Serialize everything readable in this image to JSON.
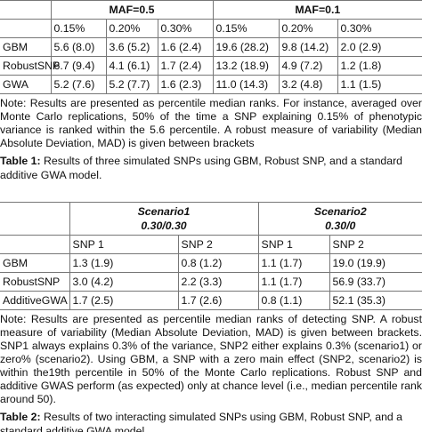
{
  "table1": {
    "group_headers": [
      "MAF=0.5",
      "MAF=0.1"
    ],
    "sub_headers": [
      "0.15%",
      "0.20%",
      "0.30%",
      "0.15%",
      "0.20%",
      "0.30%"
    ],
    "rows": [
      [
        "GBM",
        "5.6 (8.0)",
        "3.6 (5.2)",
        "1.6 (2.4)",
        "19.6 (28.2)",
        "9.8 (14.2)",
        "2.0 (2.9)"
      ],
      [
        "RobustSNP",
        "6.7 (9.4)",
        "4.1 (6.1)",
        "1.7 (2.4)",
        "13.2 (18.9)",
        "4.9 (7.2)",
        "1.2 (1.8)"
      ],
      [
        "GWA",
        "5.2 (7.6)",
        "5.2 (7.7)",
        "1.6 (2.3)",
        "11.0 (14.3)",
        "3.2 (4.8)",
        "1.1 (1.5)"
      ]
    ]
  },
  "note1": "Note: Results are presented as percentile median ranks. For instance, averaged over Monte Carlo replications, 50% of the time a SNP explaining 0.15% of phenotypic variance is ranked within the 5.6 percentile. A robust measure of variability (Median Absolute Deviation, MAD) is given between brackets",
  "caption1": {
    "label": "Table 1:",
    "text": "Results of three simulated SNPs using GBM, Robust SNP, and a standard additive GWA model."
  },
  "table2": {
    "group_headers": [
      {
        "name": "Scenario1",
        "sub": "0.30/0.30"
      },
      {
        "name": "Scenario2",
        "sub": "0.30/0"
      }
    ],
    "sub_headers": [
      "SNP 1",
      "SNP 2",
      "SNP 1",
      "SNP 2"
    ],
    "rows": [
      [
        "GBM",
        "1.3 (1.9)",
        "0.8 (1.2)",
        "1.1 (1.7)",
        "19.0 (19.9)"
      ],
      [
        "RobustSNP",
        "3.0 (4.2)",
        "2.2 (3.3)",
        "1.1 (1.7)",
        "56.9 (33.7)"
      ],
      [
        "AdditiveGWA",
        "1.7 (2.5)",
        "1.7 (2.6)",
        "0.8 (1.1)",
        "52.1 (35.3)"
      ]
    ]
  },
  "note2": "Note: Results are presented as percentile median ranks of detecting SNP. A robust measure of variability (Median Absolute Deviation, MAD) is given between brackets. SNP1 always explains 0.3% of the variance, SNP2 either explains 0.3% (scenario1) or zero% (scenario2). Using GBM, a SNP with a zero main effect (SNP2, scenario2) is within the19th percentile in 50% of the Monte Carlo replications. Robust SNP and additive GWAS perform (as expected) only at chance level (i.e., median percentile rank around 50).",
  "caption2": {
    "label": "Table 2:",
    "text": "Results of two interacting simulated SNPs using GBM, Robust SNP, and a standard additive GWA model."
  }
}
